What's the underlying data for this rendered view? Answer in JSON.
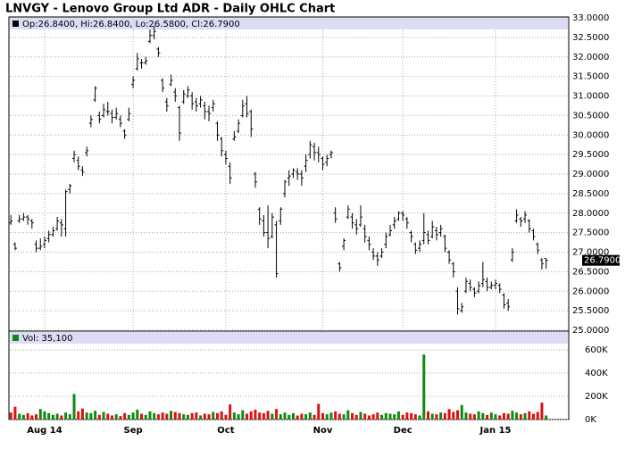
{
  "chart_data": {
    "type": "ohlc",
    "title": "LNVGY - Lenovo Group Ltd ADR - Daily OHLC Chart",
    "info": "Op:26.8400, Hi:26.8400, Lo:26.5800, Cl:26.7900",
    "color": "#000000",
    "grid": true,
    "categories": [
      null,
      null,
      null,
      null,
      null,
      null,
      null,
      null,
      "Aug 14",
      null,
      null,
      null,
      null,
      null,
      null,
      null,
      null,
      null,
      null,
      null,
      null,
      null,
      null,
      null,
      null,
      null,
      null,
      null,
      null,
      "Sep",
      null,
      null,
      null,
      null,
      null,
      null,
      null,
      null,
      null,
      null,
      null,
      null,
      null,
      null,
      null,
      null,
      null,
      null,
      null,
      null,
      null,
      "Oct",
      null,
      null,
      null,
      null,
      null,
      null,
      null,
      null,
      null,
      null,
      null,
      null,
      null,
      null,
      null,
      null,
      null,
      null,
      null,
      null,
      null,
      null,
      "Nov",
      null,
      null,
      null,
      null,
      null,
      null,
      null,
      null,
      null,
      null,
      null,
      null,
      null,
      null,
      null,
      null,
      null,
      null,
      "Dec",
      null,
      null,
      null,
      null,
      null,
      null,
      null,
      null,
      null,
      null,
      null,
      null,
      null,
      null,
      null,
      null,
      null,
      null,
      null,
      null,
      null,
      "Jan 15",
      null,
      null,
      null,
      null,
      null,
      null,
      null,
      null,
      null,
      null,
      null,
      null
    ],
    "open": [
      27.75,
      27.2,
      27.8,
      27.85,
      27.9,
      27.8,
      27.2,
      27.1,
      27.2,
      27.35,
      27.45,
      27.6,
      27.75,
      27.6,
      28.6,
      29.4,
      29.35,
      29.1,
      29.55,
      30.3,
      30.9,
      30.5,
      30.5,
      30.6,
      30.55,
      30.45,
      30.4,
      30.1,
      30.4,
      31.3,
      31.7,
      31.85,
      31.85,
      32.4,
      32.55,
      32.2,
      31.4,
      30.85,
      31.3,
      31.1,
      30.7,
      30.85,
      31,
      31,
      30.85,
      30.8,
      30.75,
      30.6,
      30.7,
      30.3,
      29.9,
      29.5,
      29.2,
      29.9,
      30.1,
      30.5,
      30.8,
      30.6,
      29,
      28.1,
      27.8,
      27.5,
      27.4,
      27.7,
      27.8,
      28.5,
      28.9,
      29,
      29.05,
      29,
      29.2,
      29.5,
      29.7,
      29.55,
      29.4,
      29.3,
      29.5,
      28,
      26.7,
      27.15,
      27.9,
      27.9,
      27.7,
      27.7,
      27.6,
      27.3,
      27,
      26.9,
      26.9,
      27.2,
      27.45,
      27.7,
      27.85,
      28,
      27.85,
      27.5,
      27.2,
      27.1,
      27.3,
      27.45,
      27.4,
      27.55,
      27.5,
      27.4,
      27,
      26.7,
      26,
      25.5,
      26,
      26.2,
      26.05,
      26,
      26.2,
      26.25,
      26.1,
      26.15,
      26.15,
      25.9,
      25.7,
      26.8,
      27.8,
      27.85,
      27.85,
      27.8,
      27.55,
      27.2,
      26.8,
      26.84
    ],
    "high": [
      27.95,
      27.25,
      27.95,
      28,
      27.95,
      27.85,
      27.3,
      27.35,
      27.4,
      27.55,
      27.65,
      27.9,
      27.85,
      28.6,
      28.75,
      29.6,
      29.45,
      29.2,
      29.7,
      30.5,
      31.25,
      30.6,
      30.8,
      30.85,
      30.65,
      30.7,
      30.5,
      30.15,
      30.7,
      31.5,
      32.1,
      31.95,
      32,
      32.7,
      32.8,
      32.25,
      31.45,
      30.95,
      31.55,
      31.2,
      30.75,
      31.15,
      31.25,
      31.1,
      30.95,
      31,
      30.85,
      30.75,
      30.9,
      30.35,
      29.95,
      29.6,
      29.3,
      30.1,
      30.4,
      30.9,
      31,
      30.65,
      29.05,
      28.15,
      27.95,
      28.2,
      28,
      27.8,
      28.15,
      28.85,
      29.1,
      29.15,
      29.15,
      29.1,
      29.5,
      29.85,
      29.8,
      29.7,
      29.45,
      29.5,
      29.6,
      28.15,
      26.75,
      27.35,
      28.2,
      28,
      27.85,
      28.2,
      27.7,
      27.4,
      27.1,
      27,
      27.1,
      27.5,
      27.7,
      27.9,
      28.05,
      28.05,
      27.9,
      27.55,
      27.25,
      27.3,
      28,
      27.55,
      27.8,
      27.65,
      27.7,
      27.45,
      27.05,
      26.75,
      26.1,
      25.7,
      26.35,
      26.3,
      26.1,
      26.25,
      26.75,
      26.35,
      26.25,
      26.3,
      26.2,
      25.95,
      25.8,
      27.1,
      28.1,
      27.9,
      28.05,
      27.85,
      27.6,
      27.25,
      26.85,
      26.84
    ],
    "low": [
      27.7,
      27.05,
      27.75,
      27.8,
      27.7,
      27.6,
      27,
      27.05,
      27.1,
      27.25,
      27.4,
      27.55,
      27.4,
      27.4,
      28.5,
      29.3,
      29.1,
      28.95,
      29.45,
      30.2,
      30.85,
      30.3,
      30.45,
      30.5,
      30.3,
      30.4,
      30.2,
      29.9,
      30.35,
      31.2,
      31.65,
      31.7,
      31.8,
      32.35,
      32.45,
      32,
      31.1,
      30.6,
      31.25,
      30.85,
      29.85,
      30.8,
      30.95,
      30.65,
      30.6,
      30.7,
      30.4,
      30.35,
      30.6,
      29.85,
      29.45,
      29.25,
      28.75,
      29.85,
      30.05,
      30.45,
      30.45,
      29.95,
      28.65,
      27.7,
      27.4,
      27.1,
      27.35,
      26.35,
      27.7,
      28.4,
      28.7,
      28.9,
      28.85,
      28.7,
      29.05,
      29.4,
      29.35,
      29.3,
      29.1,
      29.2,
      29.4,
      27.75,
      26.5,
      27.05,
      27.85,
      27.6,
      27.45,
      27.65,
      27.25,
      27.05,
      26.8,
      26.65,
      26.85,
      27.1,
      27.4,
      27.6,
      27.8,
      27.8,
      27.6,
      27.25,
      26.95,
      27,
      27.2,
      27.2,
      27.35,
      27.3,
      27.4,
      27,
      26.7,
      26.35,
      25.4,
      25.45,
      25.95,
      26,
      25.85,
      25.95,
      26.1,
      26,
      26.05,
      26.05,
      25.95,
      25.55,
      25.5,
      26.75,
      27.75,
      27.65,
      27.75,
      27.5,
      27.3,
      26.95,
      26.55,
      26.58
    ],
    "close": [
      27.8,
      27.1,
      27.85,
      27.9,
      27.85,
      27.75,
      27.1,
      27.15,
      27.3,
      27.45,
      27.55,
      27.8,
      27.7,
      28.55,
      28.7,
      29.5,
      29.2,
      29.05,
      29.6,
      30.4,
      31.2,
      30.4,
      30.65,
      30.6,
      30.45,
      30.55,
      30.3,
      30,
      30.55,
      31.4,
      31.95,
      31.85,
      31.9,
      32.55,
      32.65,
      32.1,
      31.2,
      30.75,
      31.4,
      31,
      30.05,
      31.05,
      31.15,
      30.8,
      30.75,
      30.9,
      30.6,
      30.55,
      30.8,
      30,
      29.6,
      29.4,
      28.9,
      29.95,
      30.3,
      30.75,
      30.55,
      30.15,
      28.8,
      27.85,
      27.5,
      27.35,
      27.9,
      26.45,
      28.1,
      28.8,
      28.95,
      29.1,
      29,
      28.9,
      29.35,
      29.75,
      29.55,
      29.5,
      29.25,
      29.4,
      29.55,
      27.85,
      26.6,
      27.3,
      28.1,
      27.75,
      27.6,
      27.9,
      27.4,
      27.2,
      26.9,
      26.8,
      27,
      27.4,
      27.55,
      27.8,
      28,
      27.95,
      27.75,
      27.4,
      27.05,
      27.2,
      27.5,
      27.3,
      27.65,
      27.45,
      27.6,
      27.1,
      26.8,
      26.5,
      25.55,
      25.6,
      26.25,
      26.1,
      25.95,
      26.15,
      26.3,
      26.1,
      26.15,
      26.2,
      26.05,
      25.65,
      25.6,
      27,
      27.95,
      27.8,
      27.95,
      27.6,
      27.4,
      27.05,
      26.7,
      26.79
    ],
    "ylim": [
      25,
      33
    ],
    "yticks": [
      {
        "value": 25,
        "label": "25.0000"
      },
      {
        "value": 25.5,
        "label": "25.5000"
      },
      {
        "value": 26,
        "label": "26.0000"
      },
      {
        "value": 26.5,
        "label": "26.5000"
      },
      {
        "value": 27,
        "label": "27.0000"
      },
      {
        "value": 27.5,
        "label": "27.5000"
      },
      {
        "value": 28,
        "label": "28.0000"
      },
      {
        "value": 28.5,
        "label": "28.5000"
      },
      {
        "value": 29,
        "label": "29.0000"
      },
      {
        "value": 29.5,
        "label": "29.5000"
      },
      {
        "value": 30,
        "label": "30.0000"
      },
      {
        "value": 30.5,
        "label": "30.5000"
      },
      {
        "value": 31,
        "label": "31.0000"
      },
      {
        "value": 31.5,
        "label": "31.5000"
      },
      {
        "value": 32,
        "label": "32.0000"
      },
      {
        "value": 32.5,
        "label": "32.5000"
      },
      {
        "value": 33,
        "label": "33.0000"
      }
    ],
    "last_label": {
      "value": 26.79,
      "label": "26.7900"
    },
    "volume": {
      "label": "Vol: 35,100",
      "up_color": "#118811",
      "down_color": "#dd1111",
      "values": [
        60000,
        110000,
        50000,
        40000,
        55000,
        35000,
        45000,
        90000,
        70000,
        55000,
        40000,
        50000,
        35000,
        60000,
        45000,
        220000,
        70000,
        95000,
        60000,
        55000,
        75000,
        40000,
        65000,
        50000,
        35000,
        45000,
        30000,
        55000,
        40000,
        60000,
        85000,
        50000,
        40000,
        70000,
        55000,
        45000,
        60000,
        50000,
        75000,
        65000,
        55000,
        45000,
        40000,
        55000,
        60000,
        35000,
        50000,
        45000,
        65000,
        55000,
        70000,
        40000,
        130000,
        60000,
        45000,
        80000,
        50000,
        70000,
        85000,
        60000,
        55000,
        75000,
        50000,
        90000,
        45000,
        60000,
        40000,
        55000,
        35000,
        50000,
        45000,
        60000,
        40000,
        135000,
        55000,
        45000,
        60000,
        70000,
        50000,
        45000,
        80000,
        55000,
        40000,
        65000,
        50000,
        35000,
        45000,
        60000,
        40000,
        55000,
        50000,
        45000,
        70000,
        40000,
        60000,
        55000,
        45000,
        35000,
        560000,
        70000,
        50000,
        45000,
        60000,
        55000,
        90000,
        65000,
        80000,
        125000,
        60000,
        50000,
        45000,
        70000,
        55000,
        40000,
        60000,
        45000,
        35000,
        55000,
        50000,
        75000,
        60000,
        45000,
        55000,
        70000,
        50000,
        65000,
        145000,
        35100
      ],
      "ylim": [
        0,
        750000
      ],
      "yticks": [
        {
          "value": 0,
          "label": "0K"
        },
        {
          "value": 200000,
          "label": "200K"
        },
        {
          "value": 400000,
          "label": "400K"
        },
        {
          "value": 600000,
          "label": "600K"
        }
      ]
    }
  }
}
